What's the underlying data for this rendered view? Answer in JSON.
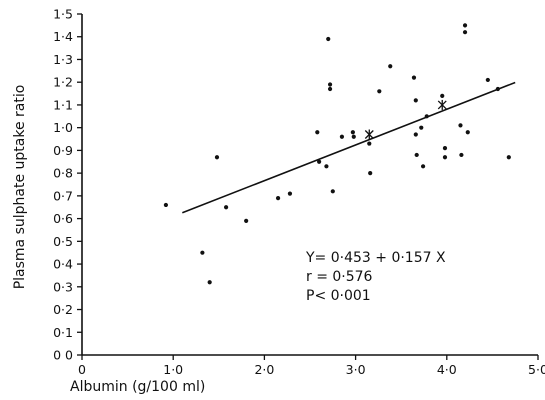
{
  "chart_data": {
    "type": "scatter",
    "title": "",
    "xlabel": "Albumin (g/100 ml)",
    "ylabel": "Plasma sulphate uptake ratio",
    "xlim": [
      0,
      5.0
    ],
    "ylim": [
      0,
      1.5
    ],
    "x_ticks": [
      {
        "value": 0,
        "label": "0"
      },
      {
        "value": 1.0,
        "label": "1·0"
      },
      {
        "value": 2.0,
        "label": "2·0"
      },
      {
        "value": 3.0,
        "label": "3·0"
      },
      {
        "value": 4.0,
        "label": "4·0"
      },
      {
        "value": 5.0,
        "label": "5·0"
      }
    ],
    "y_ticks": [
      {
        "value": 0.0,
        "label": "0 0"
      },
      {
        "value": 0.1,
        "label": "0·1"
      },
      {
        "value": 0.2,
        "label": "0·2"
      },
      {
        "value": 0.3,
        "label": "0·3"
      },
      {
        "value": 0.4,
        "label": "0·4"
      },
      {
        "value": 0.5,
        "label": "0·5"
      },
      {
        "value": 0.6,
        "label": "0·6"
      },
      {
        "value": 0.7,
        "label": "0·7"
      },
      {
        "value": 0.8,
        "label": "0·8"
      },
      {
        "value": 0.9,
        "label": "0·9"
      },
      {
        "value": 1.0,
        "label": "1·0"
      },
      {
        "value": 1.1,
        "label": "1·1"
      },
      {
        "value": 1.2,
        "label": "1·2"
      },
      {
        "value": 1.3,
        "label": "1·3"
      },
      {
        "value": 1.4,
        "label": "1·4"
      },
      {
        "value": 1.5,
        "label": "1·5"
      }
    ],
    "points": [
      {
        "x": 0.92,
        "y": 0.66
      },
      {
        "x": 1.32,
        "y": 0.45
      },
      {
        "x": 1.4,
        "y": 0.32
      },
      {
        "x": 1.48,
        "y": 0.87
      },
      {
        "x": 1.58,
        "y": 0.65
      },
      {
        "x": 1.8,
        "y": 0.59
      },
      {
        "x": 2.15,
        "y": 0.69
      },
      {
        "x": 2.28,
        "y": 0.71
      },
      {
        "x": 2.58,
        "y": 0.98
      },
      {
        "x": 2.6,
        "y": 0.85
      },
      {
        "x": 2.68,
        "y": 0.83
      },
      {
        "x": 2.7,
        "y": 1.39
      },
      {
        "x": 2.72,
        "y": 1.19
      },
      {
        "x": 2.72,
        "y": 1.17
      },
      {
        "x": 2.75,
        "y": 0.72
      },
      {
        "x": 2.85,
        "y": 0.96
      },
      {
        "x": 2.97,
        "y": 0.98
      },
      {
        "x": 2.98,
        "y": 0.96
      },
      {
        "x": 3.15,
        "y": 0.93
      },
      {
        "x": 3.16,
        "y": 0.8
      },
      {
        "x": 3.26,
        "y": 1.16
      },
      {
        "x": 3.38,
        "y": 1.27
      },
      {
        "x": 3.64,
        "y": 1.22
      },
      {
        "x": 3.66,
        "y": 1.12
      },
      {
        "x": 3.66,
        "y": 0.97
      },
      {
        "x": 3.67,
        "y": 0.88
      },
      {
        "x": 3.72,
        "y": 1.0
      },
      {
        "x": 3.74,
        "y": 0.83
      },
      {
        "x": 3.78,
        "y": 1.05
      },
      {
        "x": 3.95,
        "y": 1.14
      },
      {
        "x": 3.98,
        "y": 0.91
      },
      {
        "x": 3.98,
        "y": 0.87
      },
      {
        "x": 4.15,
        "y": 1.01
      },
      {
        "x": 4.16,
        "y": 0.88
      },
      {
        "x": 4.2,
        "y": 1.45
      },
      {
        "x": 4.2,
        "y": 1.42
      },
      {
        "x": 4.23,
        "y": 0.98
      },
      {
        "x": 4.45,
        "y": 1.21
      },
      {
        "x": 4.56,
        "y": 1.17
      },
      {
        "x": 4.68,
        "y": 0.87
      }
    ],
    "regression": {
      "intercept": 0.453,
      "slope": 0.157,
      "x_start": 1.1,
      "x_end": 4.75
    },
    "mean_markers": [
      {
        "x": 3.15,
        "y": 0.97
      },
      {
        "x": 3.95,
        "y": 1.1
      }
    ],
    "annotations": [
      "Y= 0·453 + 0·157 X",
      "r = 0·576",
      "P< 0·001"
    ],
    "grid": false,
    "legend": "none"
  }
}
